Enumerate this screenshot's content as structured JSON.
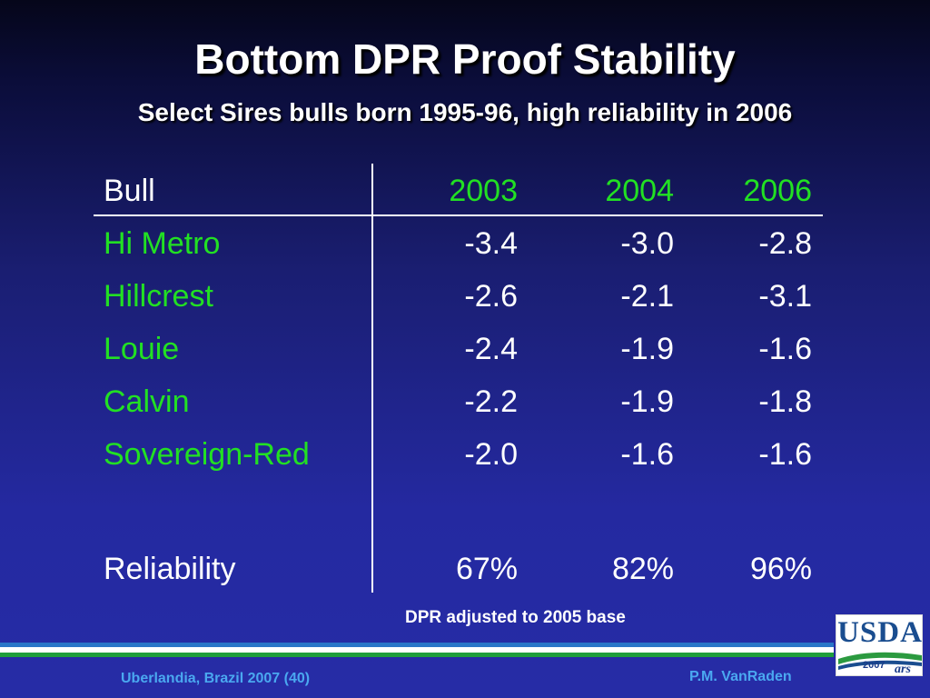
{
  "slide": {
    "title": "Bottom DPR Proof Stability",
    "subtitle": "Select Sires bulls born 1995-96, high reliability in 2006"
  },
  "table": {
    "header": {
      "bull": "Bull",
      "years": [
        "2003",
        "2004",
        "2006"
      ]
    },
    "rows": [
      {
        "name": "Hi Metro",
        "values": [
          "-3.4",
          "-3.0",
          "-2.8"
        ]
      },
      {
        "name": "Hillcrest",
        "values": [
          "-2.6",
          "-2.1",
          "-3.1"
        ]
      },
      {
        "name": "Louie",
        "values": [
          "-2.4",
          "-1.9",
          "-1.6"
        ]
      },
      {
        "name": "Calvin",
        "values": [
          "-2.2",
          "-1.9",
          "-1.8"
        ]
      },
      {
        "name": "Sovereign-Red",
        "values": [
          "-2.0",
          "-1.6",
          "-1.6"
        ]
      }
    ],
    "reliability": {
      "label": "Reliability",
      "values": [
        "67%",
        "82%",
        "96%"
      ]
    }
  },
  "footnote": "DPR adjusted to 2005 base",
  "footer": {
    "left": "Uberlandia, Brazil 2007 (40)",
    "right": "P.M. VanRaden"
  },
  "logo": {
    "text": "USDA",
    "year": "2007",
    "mark": "ars"
  },
  "colors": {
    "bull_name": "#22e023",
    "footer_text": "#4aa8f0",
    "band_blue": "#2a76c8",
    "band_green": "#1f9e3b"
  }
}
